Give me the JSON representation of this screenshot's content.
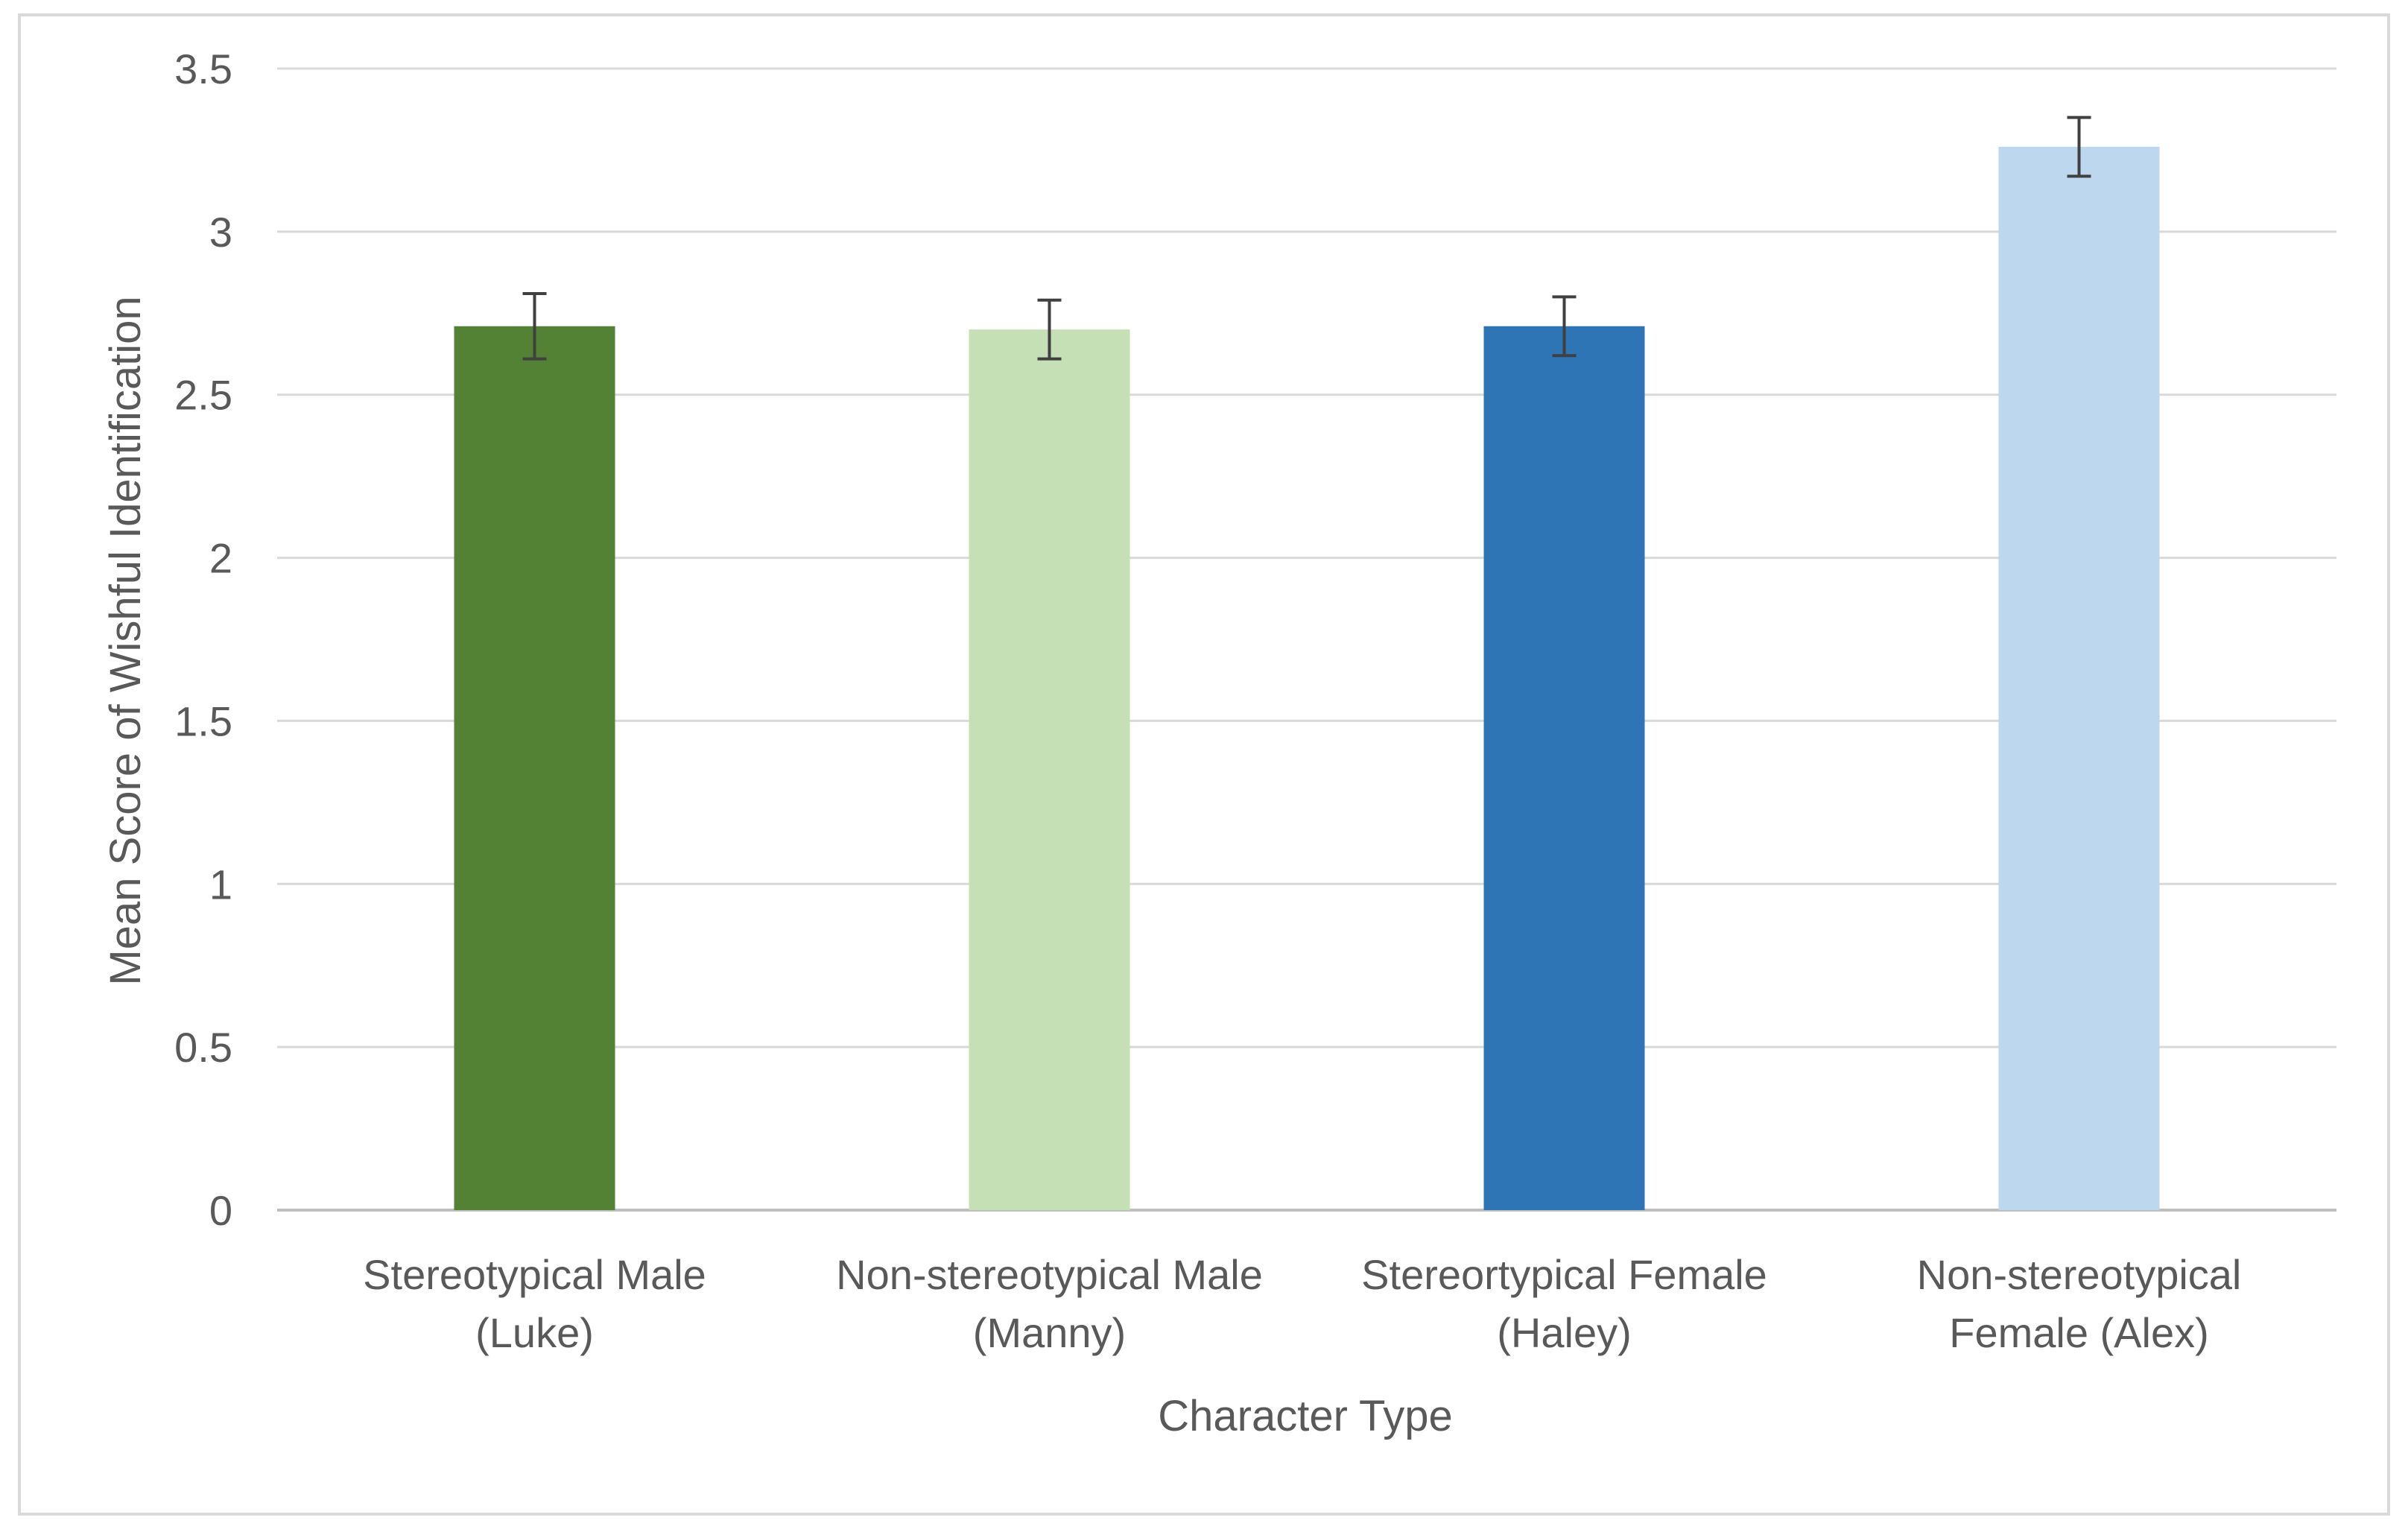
{
  "chart_data": {
    "type": "bar",
    "title": "",
    "xlabel": "Character Type",
    "ylabel": "Mean Score of Wishful Identification",
    "ylim": [
      0,
      3.5
    ],
    "yticks": [
      "0",
      "0.5",
      "1",
      "1.5",
      "2",
      "2.5",
      "3",
      "3.5"
    ],
    "grid": true,
    "legend": "none",
    "categories": [
      [
        "Stereotypical Male",
        "(Luke)"
      ],
      [
        "Non-stereotypical Male",
        "(Manny)"
      ],
      [
        "Stereortypical Female",
        "(Haley)"
      ],
      [
        "Non-stereotypical",
        "Female (Alex)"
      ]
    ],
    "values": [
      2.71,
      2.7,
      2.71,
      3.26
    ],
    "error_bars": [
      0.1,
      0.09,
      0.09,
      0.09
    ],
    "colors": [
      "#548235",
      "#c5e0b4",
      "#2e75b6",
      "#bdd7ee"
    ]
  }
}
